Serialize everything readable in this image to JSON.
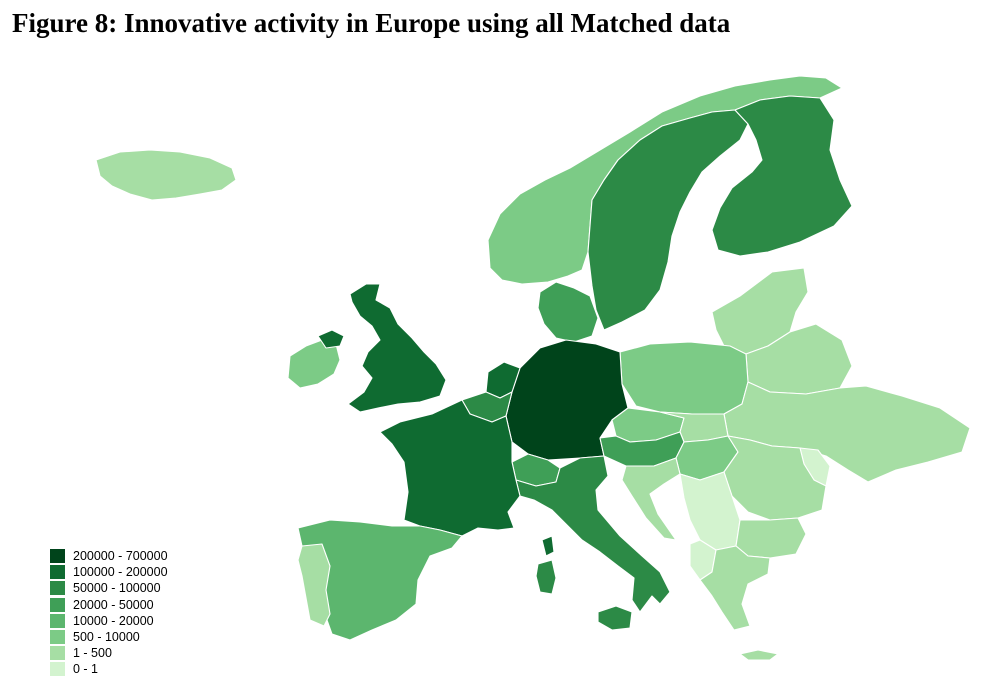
{
  "title": "Figure 8: Innovative activity in Europe using all Matched data",
  "legend": {
    "classes": [
      {
        "label": "200000 - 700000",
        "color": "#00441b"
      },
      {
        "label": "100000 - 200000",
        "color": "#0f6b31"
      },
      {
        "label": "50000 - 100000",
        "color": "#2c8a46"
      },
      {
        "label": "20000 - 50000",
        "color": "#3f9f57"
      },
      {
        "label": "10000 - 20000",
        "color": "#5cb66e"
      },
      {
        "label": "500 - 10000",
        "color": "#7ccb86"
      },
      {
        "label": "1 - 500",
        "color": "#a6dea4"
      },
      {
        "label": "0 - 1",
        "color": "#d3f3cf"
      }
    ]
  },
  "regions": [
    {
      "name": "Germany",
      "class": "200000 - 700000"
    },
    {
      "name": "United Kingdom",
      "class": "100000 - 200000"
    },
    {
      "name": "France",
      "class": "100000 - 200000"
    },
    {
      "name": "Netherlands",
      "class": "100000 - 200000"
    },
    {
      "name": "Sweden",
      "class": "50000 - 100000"
    },
    {
      "name": "Finland",
      "class": "50000 - 100000"
    },
    {
      "name": "Italy",
      "class": "50000 - 100000"
    },
    {
      "name": "Belgium",
      "class": "50000 - 100000"
    },
    {
      "name": "Switzerland",
      "class": "20000 - 50000"
    },
    {
      "name": "Denmark",
      "class": "20000 - 50000"
    },
    {
      "name": "Austria",
      "class": "20000 - 50000"
    },
    {
      "name": "Spain",
      "class": "10000 - 20000"
    },
    {
      "name": "Norway",
      "class": "500 - 10000"
    },
    {
      "name": "Poland",
      "class": "500 - 10000"
    },
    {
      "name": "Ireland",
      "class": "500 - 10000"
    },
    {
      "name": "Czech Republic",
      "class": "500 - 10000"
    },
    {
      "name": "Hungary",
      "class": "500 - 10000"
    },
    {
      "name": "Iceland",
      "class": "1 - 500"
    },
    {
      "name": "Portugal",
      "class": "1 - 500"
    },
    {
      "name": "Ukraine",
      "class": "1 - 500"
    },
    {
      "name": "Belarus",
      "class": "1 - 500"
    },
    {
      "name": "Baltic states",
      "class": "1 - 500"
    },
    {
      "name": "Romania",
      "class": "1 - 500"
    },
    {
      "name": "Bulgaria",
      "class": "1 - 500"
    },
    {
      "name": "Greece",
      "class": "1 - 500"
    },
    {
      "name": "Slovakia",
      "class": "1 - 500"
    },
    {
      "name": "Croatia",
      "class": "1 - 500"
    },
    {
      "name": "Serbia",
      "class": "0 - 1"
    },
    {
      "name": "Moldova",
      "class": "0 - 1"
    },
    {
      "name": "Albania",
      "class": "0 - 1"
    }
  ]
}
